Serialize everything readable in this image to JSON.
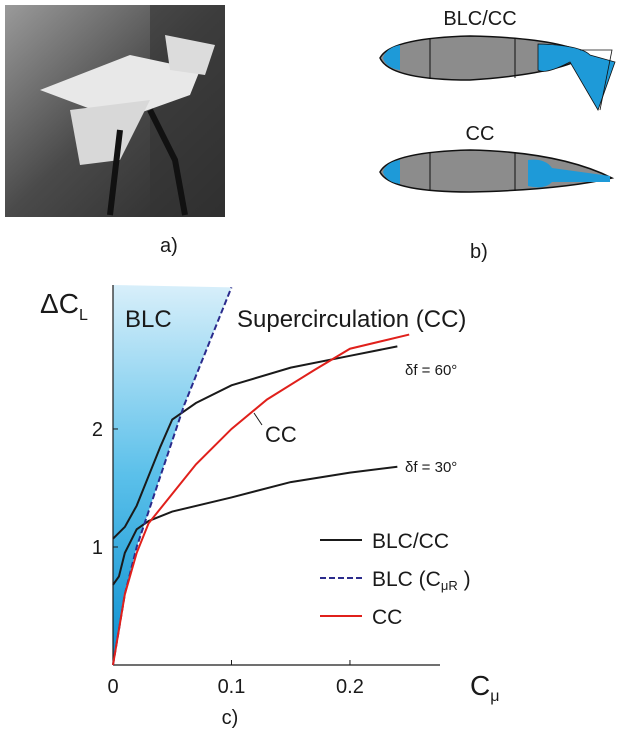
{
  "panels": {
    "a_label": "a)",
    "b_label": "b)",
    "blc_cc_label": "BLC/CC",
    "cc_label": "CC"
  },
  "chart_data": {
    "type": "line",
    "panel_label": "c)",
    "y_label": {
      "main": "ΔC",
      "sub": "L"
    },
    "x_label": {
      "main": "C",
      "sub": "μ"
    },
    "annotations": {
      "blc": "BLC",
      "supercirculation": "Supercirculation (CC)",
      "flap60": "δf = 60°",
      "cc": "CC",
      "flap30": "δf = 30°"
    },
    "xlim": [
      0,
      0.276
    ],
    "ylim": [
      0,
      3.22
    ],
    "xticks": [
      0,
      0.1,
      0.2
    ],
    "yticks": [
      1,
      2
    ],
    "series": [
      {
        "name": "BLC/CC",
        "color": "#1a1a1a",
        "dash": false,
        "x": [
          0,
          0.01,
          0.02,
          0.03,
          0.04,
          0.05,
          0.07,
          0.1,
          0.15,
          0.2,
          0.24
        ],
        "values": [
          1.07,
          1.17,
          1.35,
          1.6,
          1.85,
          2.08,
          2.22,
          2.37,
          2.52,
          2.62,
          2.7
        ]
      },
      {
        "name": "BLC/CC",
        "color": "#1a1a1a",
        "dash": false,
        "legend": false,
        "x": [
          0,
          0.005,
          0.01,
          0.02,
          0.03,
          0.05,
          0.1,
          0.15,
          0.2,
          0.24
        ],
        "values": [
          0.68,
          0.75,
          0.95,
          1.15,
          1.22,
          1.3,
          1.42,
          1.55,
          1.63,
          1.68
        ]
      },
      {
        "name": {
          "main": "BLC (C",
          "sub": "μR",
          "tail": " )"
        },
        "color": "#2b2b8c",
        "dash": true,
        "x": [
          0,
          0.01,
          0.02,
          0.04,
          0.06,
          0.08,
          0.1
        ],
        "values": [
          0,
          0.6,
          1.0,
          1.6,
          2.2,
          2.7,
          3.2
        ]
      },
      {
        "name": "CC",
        "color": "#e0201b",
        "dash": false,
        "x": [
          0,
          0.01,
          0.02,
          0.03,
          0.05,
          0.07,
          0.1,
          0.13,
          0.17,
          0.2,
          0.25
        ],
        "values": [
          0,
          0.6,
          0.95,
          1.2,
          1.45,
          1.7,
          2.0,
          2.25,
          2.5,
          2.68,
          2.8
        ]
      }
    ]
  }
}
